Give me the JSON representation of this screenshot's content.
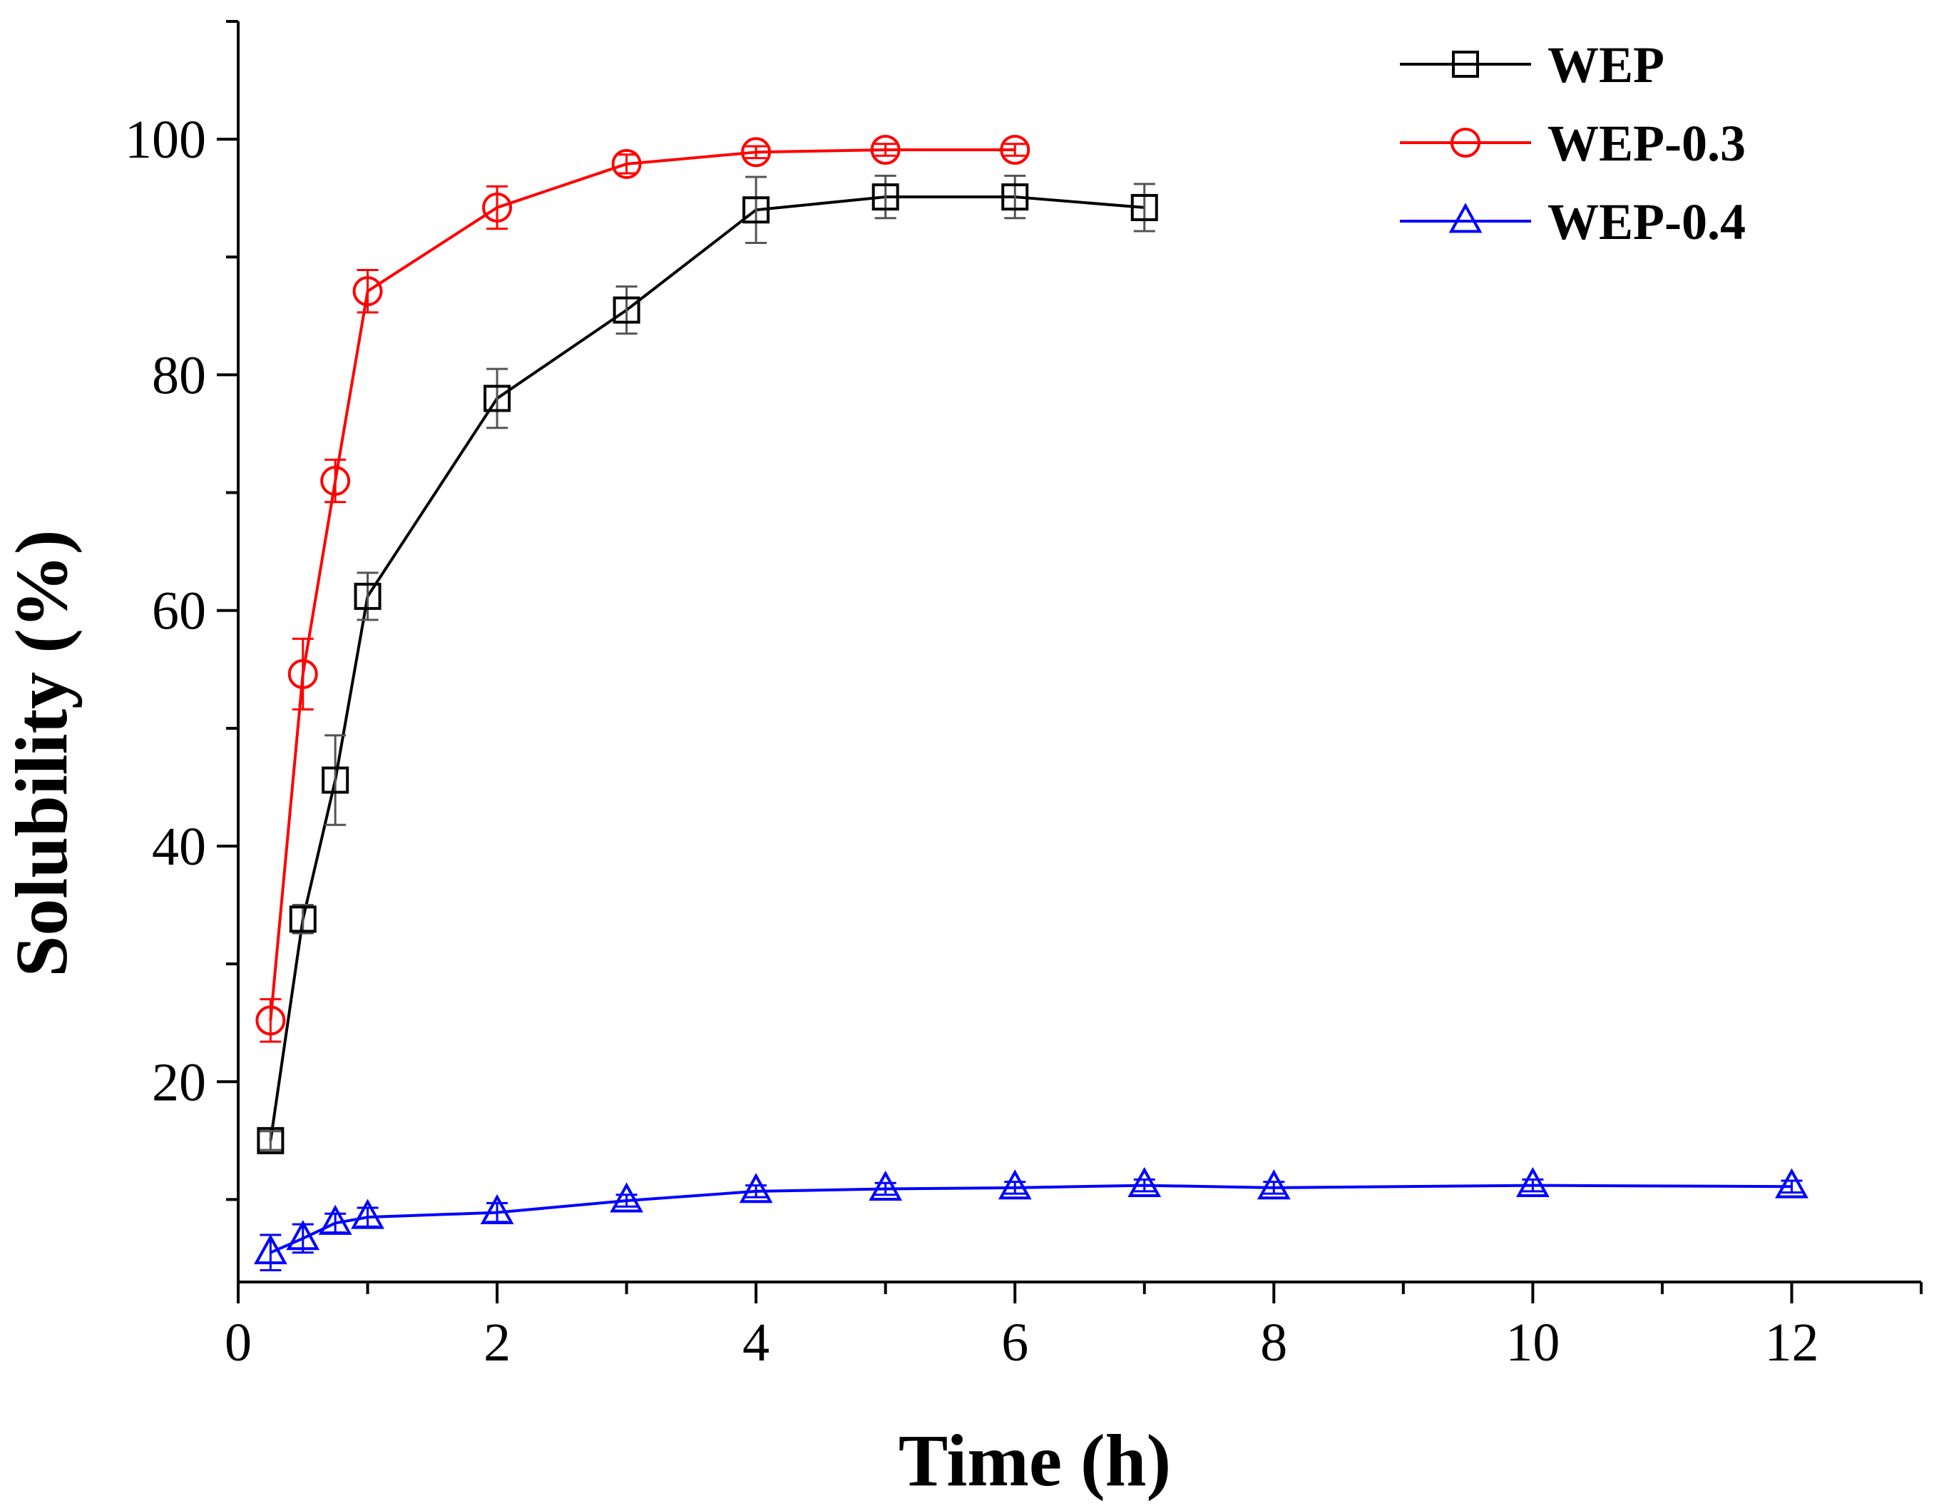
{
  "chart_data": {
    "type": "line",
    "title": "",
    "xlabel": "Time (h)",
    "ylabel": "Solubility (%)",
    "xlim": [
      0,
      13
    ],
    "ylim": [
      3,
      110
    ],
    "xticks": [
      0,
      2,
      4,
      6,
      8,
      10,
      12
    ],
    "xtick_labels": [
      "0",
      "2",
      "4",
      "6",
      "8",
      "10",
      "12"
    ],
    "yticks": [
      20,
      40,
      60,
      80,
      100
    ],
    "ytick_labels": [
      "20",
      "40",
      "60",
      "80",
      "100"
    ],
    "grid": false,
    "legend_position": "top-right",
    "series": [
      {
        "name": "WEP",
        "color": "#000000",
        "marker": "square",
        "x": [
          0.25,
          0.5,
          0.75,
          1,
          2,
          3,
          4,
          5,
          6,
          7
        ],
        "y": [
          15.0,
          33.8,
          45.6,
          61.2,
          78.0,
          85.5,
          94.0,
          95.1,
          95.1,
          94.2
        ],
        "error": [
          0.8,
          1.2,
          3.8,
          2.0,
          2.5,
          2.0,
          2.8,
          1.8,
          1.8,
          2.0
        ]
      },
      {
        "name": "WEP-0.3",
        "color": "#ff0000",
        "marker": "circle",
        "x": [
          0.25,
          0.5,
          0.75,
          1,
          2,
          3,
          4,
          5,
          6
        ],
        "y": [
          25.2,
          54.6,
          71.0,
          87.1,
          94.2,
          97.9,
          98.9,
          99.1,
          99.1
        ],
        "error": [
          1.8,
          3.0,
          1.8,
          1.8,
          1.8,
          0.8,
          0.5,
          0.5,
          0.5
        ]
      },
      {
        "name": "WEP-0.4",
        "color": "#0000ff",
        "marker": "triangle",
        "x": [
          0.25,
          0.5,
          0.75,
          1,
          2,
          3,
          4,
          5,
          6,
          7,
          8,
          10,
          12
        ],
        "y": [
          5.5,
          6.7,
          8.0,
          8.5,
          8.9,
          9.9,
          10.7,
          10.9,
          11.0,
          11.2,
          11.0,
          11.2,
          11.1
        ],
        "error": [
          1.5,
          1.2,
          0.8,
          0.8,
          0.8,
          0.5,
          0.5,
          0.5,
          0.5,
          0.5,
          0.5,
          0.5,
          0.5
        ]
      }
    ]
  }
}
